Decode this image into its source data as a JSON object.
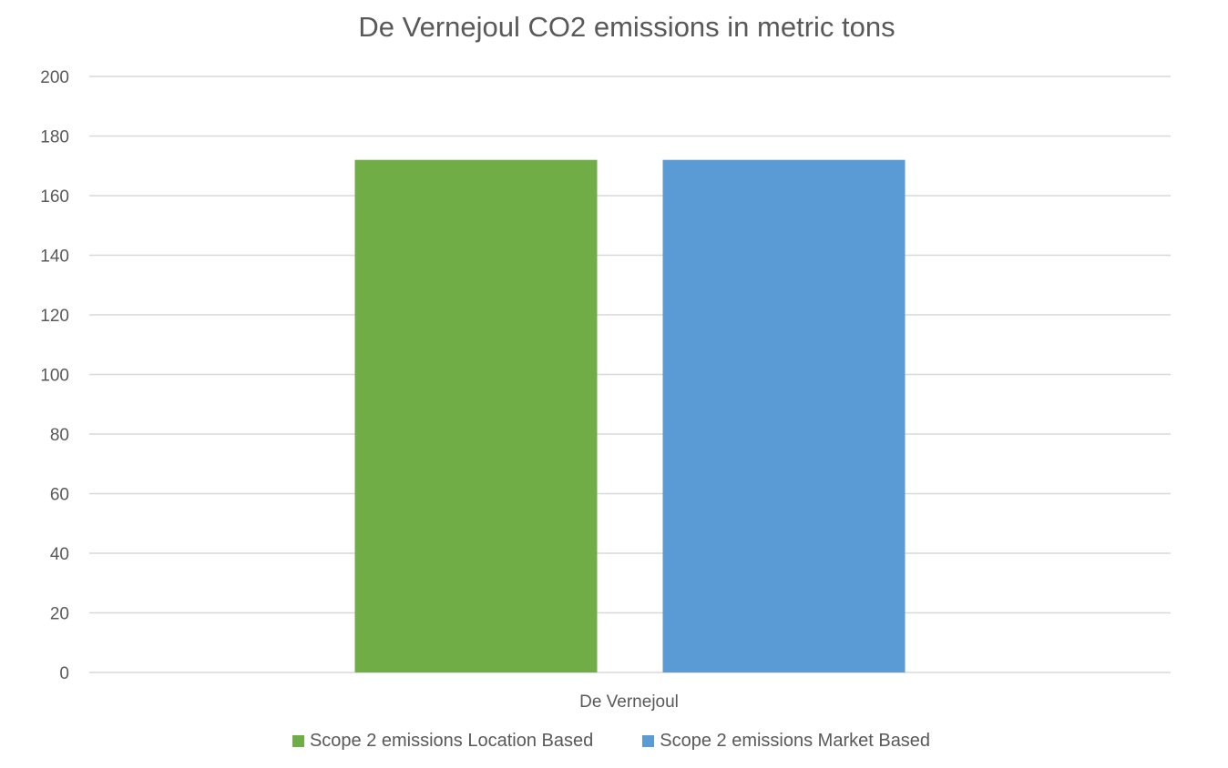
{
  "chart_data": {
    "type": "bar",
    "title": "De Vernejoul CO2 emissions in metric tons",
    "xlabel": "",
    "ylabel": "",
    "categories": [
      "De Vernejoul"
    ],
    "series": [
      {
        "name": "Scope 2 emissions Location Based",
        "values": [
          172
        ],
        "color": "#70ad47"
      },
      {
        "name": "Scope 2 emissions Market Based",
        "values": [
          172
        ],
        "color": "#5b9bd5"
      }
    ],
    "ylim": [
      0,
      200
    ],
    "yticks": [
      "0",
      "20",
      "40",
      "60",
      "80",
      "100",
      "120",
      "140",
      "160",
      "180",
      "200"
    ],
    "grid": true,
    "legend_position": "bottom"
  }
}
